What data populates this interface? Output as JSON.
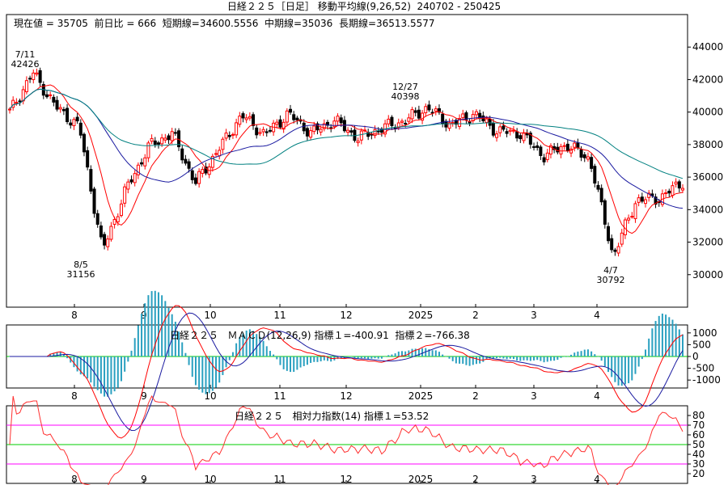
{
  "header": {
    "title": "日経２２５［日足］ 移動平均線(9,26,52)  240702 - 250425",
    "current_label": "現在値",
    "current_value": "35705",
    "change_label": "前日比",
    "change_value": "666",
    "short_label": "短期線",
    "short_value": "34600.5556",
    "mid_label": "中期線",
    "mid_value": "35036",
    "long_label": "長期線",
    "long_value": "36513.5577"
  },
  "annotations": [
    {
      "date": "7/11",
      "value": "42426"
    },
    {
      "date": "8/5",
      "value": "31156"
    },
    {
      "date": "12/27",
      "value": "40398"
    },
    {
      "date": "4/7",
      "value": "30792"
    }
  ],
  "macd_panel": {
    "label": "日経２２５   ＭＡＣＤ(12,26,9) 指標１=-400.91  指標２=-766.38"
  },
  "rsi_panel": {
    "label": "日経２２５   相対力指数(14) 指標１=53.52"
  },
  "colors": {
    "up": "#ff0000",
    "down": "#000000",
    "ma_short": "#ff0000",
    "ma_mid": "#1a1aa0",
    "ma_long": "#008080",
    "hist": "#2aa0c0",
    "zero": "#00cc00",
    "rsi_line": "#ff3030",
    "rsi_band": "#ff00ff"
  },
  "chart_data": [
    {
      "type": "line",
      "name": "price",
      "x_ticks": [
        "8",
        "9",
        "10",
        "11",
        "12",
        "2025",
        "2",
        "3",
        "4"
      ],
      "y_ticks": [
        30000,
        32000,
        34000,
        36000,
        38000,
        40000,
        42000,
        44000
      ],
      "ylim": [
        28000,
        46000
      ],
      "x": [
        "7/2",
        "7/11",
        "7/18",
        "7/31",
        "8/5",
        "8/9",
        "8/20",
        "9/2",
        "9/11",
        "9/20",
        "9/27",
        "10/3",
        "10/15",
        "10/28",
        "11/8",
        "11/20",
        "12/2",
        "12/16",
        "12/27",
        "1/10",
        "1/24",
        "2/5",
        "2/20",
        "3/4",
        "3/19",
        "3/28",
        "4/7",
        "4/10",
        "4/18",
        "4/25"
      ],
      "close": [
        40000,
        42426,
        40300,
        39100,
        31458,
        35200,
        37900,
        38700,
        35620,
        37700,
        39800,
        38600,
        39900,
        38700,
        39500,
        38400,
        39000,
        39450,
        40281,
        39190,
        39900,
        38830,
        38700,
        37300,
        38000,
        37100,
        31136,
        34600,
        34700,
        35705
      ],
      "series_names": [
        "短期線",
        "中期線",
        "長期線"
      ]
    },
    {
      "type": "bar",
      "name": "MACD",
      "y_ticks": [
        -1000,
        -500,
        0,
        500,
        1000
      ],
      "ylim": [
        -1200,
        1200
      ],
      "x_ticks": [
        "8",
        "9",
        "10",
        "11",
        "12",
        "2025",
        "2",
        "3",
        "4"
      ],
      "indicator1": -400.91,
      "indicator2": -766.38
    },
    {
      "type": "line",
      "name": "RSI",
      "y_ticks": [
        20,
        30,
        40,
        50,
        60,
        70,
        80
      ],
      "ylim": [
        10,
        90
      ],
      "x_ticks": [
        "8",
        "9",
        "10",
        "11",
        "12",
        "2025",
        "2",
        "3",
        "4"
      ],
      "indicator1": 53.52
    }
  ]
}
